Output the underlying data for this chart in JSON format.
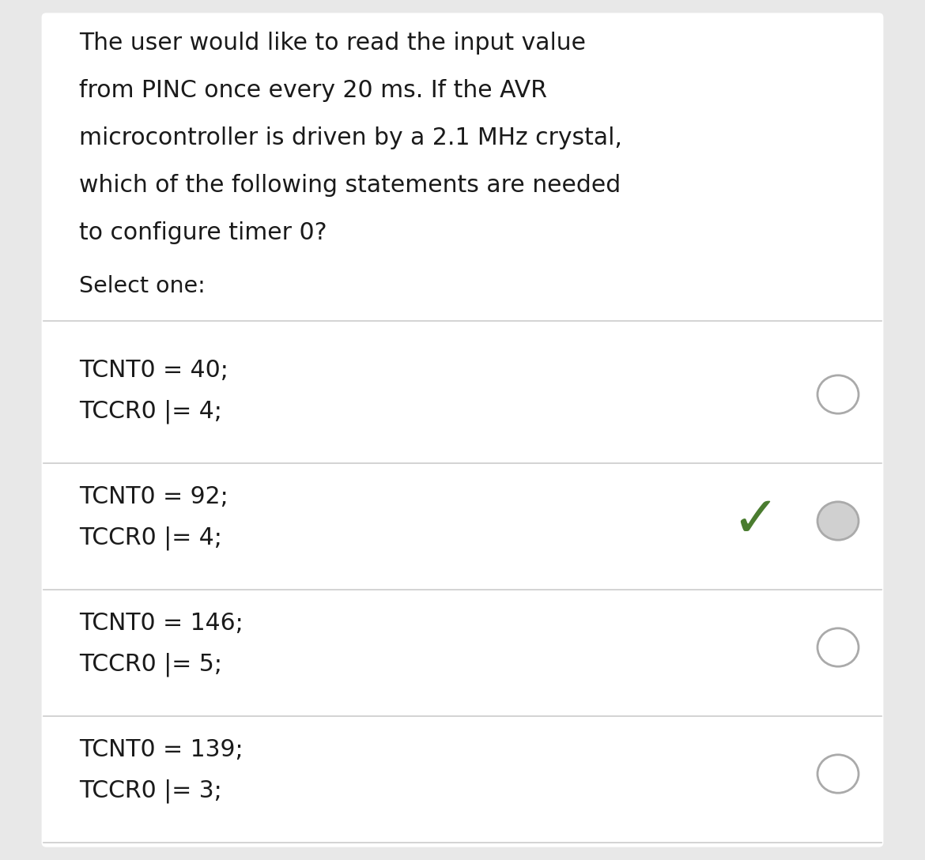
{
  "question_lines": [
    "The user would like to read the input value",
    "from PINC once every 20 ms. If the AVR",
    "microcontroller is driven by a 2.1 MHz crystal,",
    "which of the following statements are needed",
    "to configure timer 0?"
  ],
  "select_label": "Select one:",
  "options": [
    {
      "line1": "TCNT0 = 40;",
      "line2": "TCCR0 |= 4;",
      "correct": false,
      "selected": false
    },
    {
      "line1": "TCNT0 = 92;",
      "line2": "TCCR0 |= 4;",
      "correct": true,
      "selected": true
    },
    {
      "line1": "TCNT0 = 146;",
      "line2": "TCCR0 |= 5;",
      "correct": false,
      "selected": false
    },
    {
      "line1": "TCNT0 = 139;",
      "line2": "TCCR0 |= 3;",
      "correct": false,
      "selected": false
    }
  ],
  "bg_color": "#e8e8e8",
  "card_color": "#ffffff",
  "text_color": "#1a1a1a",
  "option_text_color": "#1a1a1a",
  "divider_color": "#cccccc",
  "radio_edge_color": "#aaaaaa",
  "radio_face_color": "#d0d0d0",
  "check_color": "#4a7c2f",
  "fig_width": 11.7,
  "fig_height": 10.88,
  "dpi": 100
}
